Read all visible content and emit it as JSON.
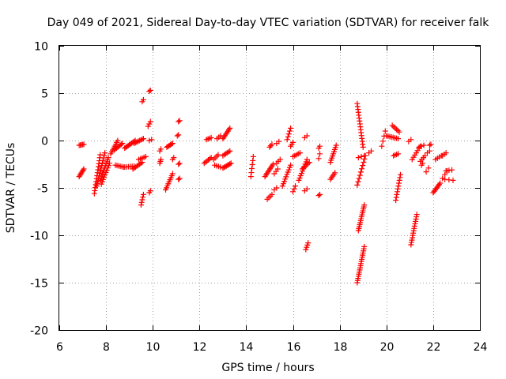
{
  "chart_data": {
    "type": "scatter",
    "title": "Day 049 of 2021, Sidereal Day-to-day VTEC variation (SDTVAR) for receiver falk",
    "xlabel": "GPS time / hours",
    "ylabel": "SDTVAR / TECUs",
    "xlim": [
      6,
      24
    ],
    "ylim": [
      -20,
      10
    ],
    "xticks": [
      "6",
      "8",
      "10",
      "12",
      "14",
      "16",
      "18",
      "20",
      "22",
      "24"
    ],
    "yticks": [
      "10",
      "5",
      "0",
      "-5",
      "-10",
      "-15",
      "-20"
    ],
    "grid": true,
    "marker": "+",
    "color": "#ff0000",
    "tracks": [
      {
        "x0": 6.85,
        "x1": 7.05,
        "y0": -0.5,
        "y1": -0.4,
        "n": 5
      },
      {
        "x0": 6.85,
        "x1": 7.05,
        "y0": -3.8,
        "y1": -3.0,
        "n": 7
      },
      {
        "x0": 7.5,
        "x1": 7.75,
        "y0": -5.6,
        "y1": -1.5,
        "n": 14
      },
      {
        "x0": 7.6,
        "x1": 7.95,
        "y0": -4.8,
        "y1": -1.3,
        "n": 14
      },
      {
        "x0": 7.75,
        "x1": 8.1,
        "y0": -4.2,
        "y1": -1.8,
        "n": 12
      },
      {
        "x0": 7.8,
        "x1": 8.15,
        "y0": -4.6,
        "y1": -2.4,
        "n": 10
      },
      {
        "x0": 8.2,
        "x1": 8.5,
        "y0": -1.4,
        "y1": 0.0,
        "n": 8
      },
      {
        "x0": 8.35,
        "x1": 8.7,
        "y0": -1.0,
        "y1": -0.3,
        "n": 8
      },
      {
        "x0": 8.4,
        "x1": 8.75,
        "y0": -2.6,
        "y1": -2.8,
        "n": 6
      },
      {
        "x0": 8.8,
        "x1": 9.25,
        "y0": -0.8,
        "y1": 0.0,
        "n": 10
      },
      {
        "x0": 8.8,
        "x1": 9.2,
        "y0": -2.8,
        "y1": -2.7,
        "n": 6
      },
      {
        "x0": 9.2,
        "x1": 9.6,
        "y0": -0.3,
        "y1": 0.2,
        "n": 8
      },
      {
        "x0": 9.15,
        "x1": 9.55,
        "y0": -3.0,
        "y1": -2.3,
        "n": 8
      },
      {
        "x0": 9.4,
        "x1": 9.7,
        "y0": -2.0,
        "y1": -1.7,
        "n": 5
      },
      {
        "x0": 9.5,
        "x1": 9.6,
        "y0": -6.8,
        "y1": -5.7,
        "n": 5
      },
      {
        "x0": 9.85,
        "x1": 9.9,
        "y0": -5.5,
        "y1": -5.3,
        "n": 2
      },
      {
        "x0": 9.55,
        "x1": 9.6,
        "y0": 4.1,
        "y1": 4.3,
        "n": 2
      },
      {
        "x0": 9.85,
        "x1": 9.9,
        "y0": 5.2,
        "y1": 5.3,
        "n": 2
      },
      {
        "x0": 9.8,
        "x1": 9.9,
        "y0": 1.5,
        "y1": 2.0,
        "n": 3
      },
      {
        "x0": 9.85,
        "x1": 9.95,
        "y0": 0.0,
        "y1": 0.1,
        "n": 2
      },
      {
        "x0": 10.3,
        "x1": 10.35,
        "y0": -1.1,
        "y1": -0.9,
        "n": 2
      },
      {
        "x0": 10.3,
        "x1": 10.35,
        "y0": -2.4,
        "y1": -2.0,
        "n": 3
      },
      {
        "x0": 10.6,
        "x1": 10.85,
        "y0": -0.7,
        "y1": -0.3,
        "n": 6
      },
      {
        "x0": 10.55,
        "x1": 10.85,
        "y0": -5.2,
        "y1": -3.5,
        "n": 9
      },
      {
        "x0": 10.85,
        "x1": 10.9,
        "y0": -2.0,
        "y1": -1.8,
        "n": 2
      },
      {
        "x0": 11.1,
        "x1": 11.15,
        "y0": 2.0,
        "y1": 2.1,
        "n": 2
      },
      {
        "x0": 11.05,
        "x1": 11.1,
        "y0": 0.5,
        "y1": 0.6,
        "n": 2
      },
      {
        "x0": 11.1,
        "x1": 11.15,
        "y0": -2.5,
        "y1": -2.4,
        "n": 2
      },
      {
        "x0": 11.1,
        "x1": 11.15,
        "y0": -4.1,
        "y1": -4.0,
        "n": 2
      },
      {
        "x0": 12.2,
        "x1": 12.5,
        "y0": -2.4,
        "y1": -1.8,
        "n": 6
      },
      {
        "x0": 12.3,
        "x1": 12.5,
        "y0": 0.1,
        "y1": 0.3,
        "n": 4
      },
      {
        "x0": 12.6,
        "x1": 12.8,
        "y0": -2.0,
        "y1": -1.5,
        "n": 4
      },
      {
        "x0": 12.65,
        "x1": 12.9,
        "y0": -2.6,
        "y1": -2.8,
        "n": 4
      },
      {
        "x0": 12.75,
        "x1": 12.9,
        "y0": 0.2,
        "y1": 0.5,
        "n": 3
      },
      {
        "x0": 13.0,
        "x1": 13.3,
        "y0": 0.2,
        "y1": 1.3,
        "n": 8
      },
      {
        "x0": 13.0,
        "x1": 13.3,
        "y0": -1.6,
        "y1": -1.1,
        "n": 6
      },
      {
        "x0": 13.0,
        "x1": 13.35,
        "y0": -2.9,
        "y1": -2.4,
        "n": 8
      },
      {
        "x0": 14.2,
        "x1": 14.3,
        "y0": -3.8,
        "y1": -1.7,
        "n": 6
      },
      {
        "x0": 14.9,
        "x1": 15.1,
        "y0": -6.2,
        "y1": -5.7,
        "n": 4
      },
      {
        "x0": 14.8,
        "x1": 15.15,
        "y0": -3.8,
        "y1": -2.5,
        "n": 9
      },
      {
        "x0": 15.0,
        "x1": 15.1,
        "y0": -0.7,
        "y1": -0.4,
        "n": 3
      },
      {
        "x0": 15.2,
        "x1": 15.35,
        "y0": -3.5,
        "y1": -3.0,
        "n": 3
      },
      {
        "x0": 15.2,
        "x1": 15.3,
        "y0": -5.2,
        "y1": -5.0,
        "n": 2
      },
      {
        "x0": 15.3,
        "x1": 15.4,
        "y0": -0.3,
        "y1": -0.1,
        "n": 2
      },
      {
        "x0": 15.3,
        "x1": 15.45,
        "y0": -2.4,
        "y1": -2.0,
        "n": 3
      },
      {
        "x0": 15.55,
        "x1": 15.9,
        "y0": -4.8,
        "y1": -2.6,
        "n": 10
      },
      {
        "x0": 15.75,
        "x1": 15.9,
        "y0": 0.1,
        "y1": 1.3,
        "n": 5
      },
      {
        "x0": 15.9,
        "x1": 16.0,
        "y0": -0.6,
        "y1": -0.2,
        "n": 3
      },
      {
        "x0": 16.0,
        "x1": 16.1,
        "y0": -5.4,
        "y1": -4.8,
        "n": 3
      },
      {
        "x0": 16.0,
        "x1": 16.3,
        "y0": -1.7,
        "y1": -1.3,
        "n": 5
      },
      {
        "x0": 16.25,
        "x1": 16.6,
        "y0": -4.2,
        "y1": -2.0,
        "n": 10
      },
      {
        "x0": 16.4,
        "x1": 16.7,
        "y0": -3.0,
        "y1": -2.3,
        "n": 6
      },
      {
        "x0": 16.5,
        "x1": 16.6,
        "y0": 0.3,
        "y1": 0.5,
        "n": 2
      },
      {
        "x0": 16.5,
        "x1": 16.6,
        "y0": -5.3,
        "y1": -5.1,
        "n": 2
      },
      {
        "x0": 16.55,
        "x1": 16.65,
        "y0": -11.5,
        "y1": -10.8,
        "n": 4
      },
      {
        "x0": 17.1,
        "x1": 17.15,
        "y0": -0.8,
        "y1": -0.6,
        "n": 2
      },
      {
        "x0": 17.1,
        "x1": 17.15,
        "y0": -1.9,
        "y1": -1.4,
        "n": 2
      },
      {
        "x0": 17.1,
        "x1": 17.15,
        "y0": -5.8,
        "y1": -5.7,
        "n": 2
      },
      {
        "x0": 17.6,
        "x1": 17.85,
        "y0": -2.3,
        "y1": -0.5,
        "n": 9
      },
      {
        "x0": 17.6,
        "x1": 17.8,
        "y0": -4.1,
        "y1": -3.4,
        "n": 5
      },
      {
        "x0": 18.75,
        "x1": 19.0,
        "y0": 3.9,
        "y1": -0.7,
        "n": 16
      },
      {
        "x0": 18.75,
        "x1": 19.1,
        "y0": -4.7,
        "y1": -1.6,
        "n": 10
      },
      {
        "x0": 18.75,
        "x1": 19.05,
        "y0": -15.0,
        "y1": -11.2,
        "n": 18
      },
      {
        "x0": 18.8,
        "x1": 19.05,
        "y0": -9.5,
        "y1": -6.8,
        "n": 14
      },
      {
        "x0": 18.8,
        "x1": 19.05,
        "y0": -1.8,
        "y1": -1.6,
        "n": 3
      },
      {
        "x0": 19.25,
        "x1": 19.35,
        "y0": -1.3,
        "y1": -1.1,
        "n": 2
      },
      {
        "x0": 19.8,
        "x1": 19.95,
        "y0": -0.6,
        "y1": 1.0,
        "n": 4
      },
      {
        "x0": 20.0,
        "x1": 20.5,
        "y0": 0.5,
        "y1": 0.2,
        "n": 8
      },
      {
        "x0": 20.25,
        "x1": 20.55,
        "y0": 1.6,
        "y1": 0.9,
        "n": 6
      },
      {
        "x0": 20.3,
        "x1": 20.5,
        "y0": -1.6,
        "y1": -1.4,
        "n": 4
      },
      {
        "x0": 20.4,
        "x1": 20.6,
        "y0": -6.3,
        "y1": -3.6,
        "n": 10
      },
      {
        "x0": 20.95,
        "x1": 21.05,
        "y0": -0.1,
        "y1": 0.1,
        "n": 2
      },
      {
        "x0": 21.1,
        "x1": 21.45,
        "y0": -2.0,
        "y1": -0.6,
        "n": 7
      },
      {
        "x0": 21.05,
        "x1": 21.3,
        "y0": -11.0,
        "y1": -7.8,
        "n": 14
      },
      {
        "x0": 21.4,
        "x1": 21.6,
        "y0": -0.7,
        "y1": -0.5,
        "n": 3
      },
      {
        "x0": 21.45,
        "x1": 21.65,
        "y0": -2.2,
        "y1": -1.6,
        "n": 4
      },
      {
        "x0": 21.5,
        "x1": 21.55,
        "y0": -2.6,
        "y1": -2.4,
        "n": 2
      },
      {
        "x0": 21.7,
        "x1": 21.8,
        "y0": -3.3,
        "y1": -2.9,
        "n": 2
      },
      {
        "x0": 21.75,
        "x1": 21.85,
        "y0": -1.3,
        "y1": -1.1,
        "n": 2
      },
      {
        "x0": 21.85,
        "x1": 21.9,
        "y0": -0.5,
        "y1": -0.4,
        "n": 2
      },
      {
        "x0": 22.0,
        "x1": 22.3,
        "y0": -5.5,
        "y1": -4.5,
        "n": 8
      },
      {
        "x0": 22.1,
        "x1": 22.35,
        "y0": -2.0,
        "y1": -1.6,
        "n": 4
      },
      {
        "x0": 22.4,
        "x1": 22.55,
        "y0": -1.6,
        "y1": -1.3,
        "n": 3
      },
      {
        "x0": 22.4,
        "x1": 22.6,
        "y0": -4.0,
        "y1": -3.2,
        "n": 3
      },
      {
        "x0": 22.55,
        "x1": 22.8,
        "y0": -3.2,
        "y1": -3.1,
        "n": 3
      },
      {
        "x0": 22.5,
        "x1": 22.85,
        "y0": -4.1,
        "y1": -4.2,
        "n": 3
      }
    ]
  }
}
